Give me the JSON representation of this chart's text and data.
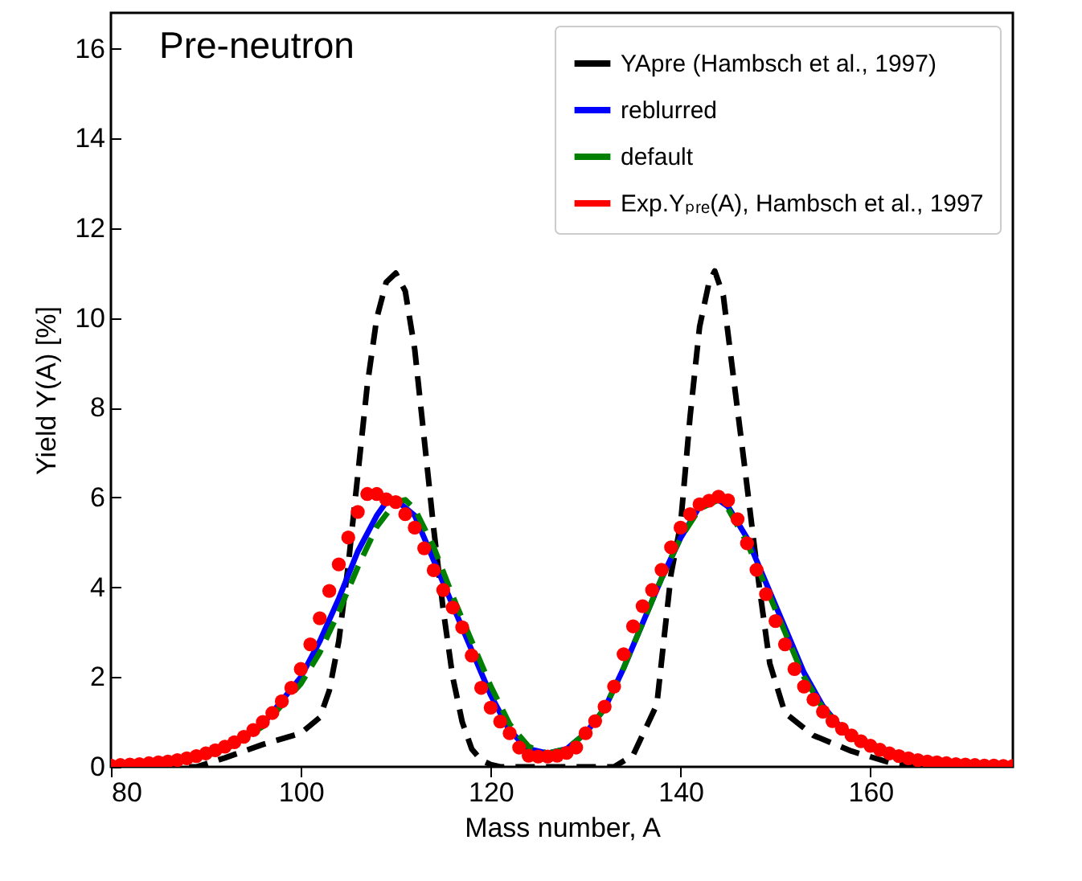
{
  "chart_data": {
    "type": "line",
    "xlabel": "Mass number, A",
    "ylabel": "Yield Y(A) [%]",
    "annotations": [
      "Pre-neutron"
    ],
    "xlim": [
      80,
      175
    ],
    "xticks": [
      80,
      100,
      120,
      140,
      160
    ],
    "ylim": [
      0,
      16.8
    ],
    "yticks": [
      0,
      2,
      4,
      6,
      8,
      10,
      12,
      14,
      16
    ],
    "grid": false,
    "legend": "top right",
    "series": [
      {
        "name": "YApre (Hambsch et al., 1997)",
        "line_style": "dashed",
        "color": "#000000",
        "x": [
          85,
          89,
          92,
          96,
          100,
          102,
          103,
          104,
          105,
          106,
          107,
          108,
          109,
          110,
          111,
          112,
          113,
          114,
          115,
          116,
          117,
          118,
          119,
          120,
          121,
          126,
          133,
          135,
          137.5,
          139,
          140,
          141,
          142,
          143,
          143.6,
          144.5,
          145.5,
          146.8,
          148.3,
          149.4,
          151,
          154,
          158,
          162,
          165,
          170
        ],
        "values": [
          0,
          0,
          0.2,
          0.5,
          0.75,
          1.1,
          1.7,
          2.8,
          4.5,
          6.5,
          8.5,
          10.0,
          10.8,
          11.0,
          10.6,
          9.3,
          7.3,
          5.3,
          3.5,
          2.0,
          1.0,
          0.4,
          0.15,
          0.05,
          0,
          0,
          0,
          0.26,
          1.39,
          4.3,
          5.4,
          7.8,
          9.8,
          10.8,
          11.05,
          10.5,
          8.8,
          6.6,
          4.0,
          2.3,
          1.2,
          0.7,
          0.35,
          0.1,
          0.02,
          0
        ]
      },
      {
        "name": "reblurred",
        "line_style": "solid",
        "color": "#0000ff",
        "x": [
          92,
          96,
          100,
          102,
          104,
          106,
          108,
          109,
          110,
          112,
          114,
          116,
          118,
          120,
          122,
          124,
          126,
          128,
          130,
          132,
          134,
          136,
          138,
          140,
          142,
          144,
          145,
          147,
          149,
          151,
          153,
          155,
          157,
          160
        ],
        "values": [
          0.4,
          0.95,
          2.0,
          2.8,
          3.75,
          4.8,
          5.6,
          5.9,
          5.95,
          5.6,
          4.6,
          3.6,
          2.6,
          1.6,
          0.8,
          0.4,
          0.3,
          0.4,
          0.75,
          1.3,
          2.2,
          3.2,
          4.2,
          5.1,
          5.8,
          5.95,
          5.8,
          5.1,
          4.1,
          3.1,
          2.1,
          1.35,
          0.85,
          0.45
        ]
      },
      {
        "name": "default",
        "line_style": "dashed",
        "color": "#008000",
        "x": [
          92,
          96,
          100,
          102,
          104,
          106,
          108,
          110,
          111,
          112,
          114,
          116,
          118,
          120,
          122,
          124,
          126,
          128,
          130,
          132,
          134,
          136,
          138,
          140,
          142,
          144,
          145,
          147,
          149,
          151,
          153,
          155,
          157,
          160
        ],
        "values": [
          0.38,
          0.9,
          1.85,
          2.55,
          3.45,
          4.45,
          5.35,
          5.9,
          5.95,
          5.75,
          4.9,
          3.8,
          2.8,
          1.8,
          0.95,
          0.45,
          0.3,
          0.4,
          0.75,
          1.3,
          2.2,
          3.2,
          4.2,
          5.1,
          5.75,
          5.95,
          5.75,
          5.0,
          4.0,
          3.0,
          2.0,
          1.3,
          0.85,
          0.45
        ]
      },
      {
        "name": "Exp.Yₚᵣₑ(A), Hambsch et al., 1997",
        "type": "scatter",
        "marker": "circle",
        "color": "#ff0000",
        "x": [
          80,
          81,
          82,
          83,
          84,
          85,
          86,
          87,
          88,
          89,
          90,
          91,
          92,
          93,
          94,
          95,
          96,
          97,
          98,
          99,
          100,
          101,
          102,
          103,
          104,
          105,
          106,
          107,
          108,
          109,
          110,
          111,
          112,
          113,
          114,
          115,
          116,
          117,
          118,
          119,
          120,
          121,
          122,
          123,
          124,
          125,
          126,
          127,
          128,
          129,
          130,
          131,
          132,
          133,
          134,
          135,
          136,
          137,
          138,
          139,
          140,
          141,
          142,
          143,
          144,
          145,
          146,
          147,
          148,
          149,
          150,
          151,
          152,
          153,
          154,
          155,
          156,
          157,
          158,
          159,
          160,
          161,
          162,
          163,
          164,
          165,
          166,
          167,
          168,
          169,
          170,
          171,
          172,
          173,
          174,
          175
        ],
        "values": [
          0.03,
          0.04,
          0.05,
          0.06,
          0.08,
          0.1,
          0.12,
          0.15,
          0.19,
          0.24,
          0.3,
          0.37,
          0.45,
          0.55,
          0.67,
          0.82,
          1.0,
          1.2,
          1.46,
          1.76,
          2.18,
          2.73,
          3.31,
          3.92,
          4.51,
          5.11,
          5.68,
          6.08,
          6.08,
          5.96,
          5.9,
          5.63,
          5.33,
          4.87,
          4.38,
          3.94,
          3.55,
          3.11,
          2.48,
          1.76,
          1.32,
          1.01,
          0.75,
          0.43,
          0.25,
          0.23,
          0.23,
          0.25,
          0.31,
          0.43,
          0.75,
          1.02,
          1.34,
          1.79,
          2.51,
          3.13,
          3.58,
          3.94,
          4.39,
          4.89,
          5.33,
          5.63,
          5.85,
          5.93,
          6.02,
          5.94,
          5.52,
          4.98,
          4.39,
          3.85,
          3.25,
          2.73,
          2.18,
          1.79,
          1.5,
          1.23,
          1.02,
          0.85,
          0.7,
          0.57,
          0.47,
          0.38,
          0.3,
          0.24,
          0.19,
          0.15,
          0.12,
          0.1,
          0.08,
          0.06,
          0.05,
          0.04,
          0.03,
          0.03,
          0.02,
          0.02
        ]
      }
    ]
  }
}
